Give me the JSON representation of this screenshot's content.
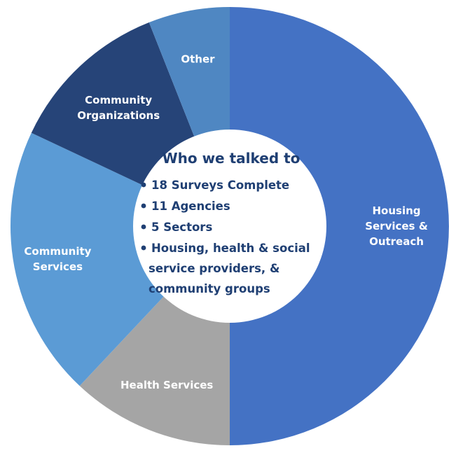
{
  "chart_data": {
    "type": "pie",
    "donut": true,
    "categories": [
      "Housing Services & Outreach",
      "Health Services",
      "Community Services",
      "Community Organizations",
      "Other"
    ],
    "values": [
      50,
      12,
      20,
      12,
      6
    ],
    "unit": "%",
    "colors": [
      "#4472c4",
      "#a5a5a5",
      "#5b9bd5",
      "#264478",
      "#4f87c2"
    ],
    "slices": [
      {
        "lines": [
          "Housing",
          "Services &",
          "Outreach"
        ],
        "value": 50,
        "color": "#4472c4",
        "text_color": "#ffffff"
      },
      {
        "lines": [
          "Health Services"
        ],
        "value": 12,
        "color": "#a5a5a5",
        "text_color": "#ffffff"
      },
      {
        "lines": [
          "Community",
          "Services"
        ],
        "value": 20,
        "color": "#5b9bd5",
        "text_color": "#ffffff"
      },
      {
        "lines": [
          "Community",
          "Organizations"
        ],
        "value": 12,
        "color": "#264478",
        "text_color": "#ffffff"
      },
      {
        "lines": [
          "Other"
        ],
        "value": 6,
        "color": "#4f87c2",
        "text_color": "#ffffff"
      }
    ],
    "start_angle_deg": 0,
    "direction": "clockwise"
  },
  "center": {
    "title": "Who we talked to",
    "bullets": [
      {
        "lines": [
          "18 Surveys Complete"
        ]
      },
      {
        "lines": [
          "11 Agencies"
        ]
      },
      {
        "lines": [
          "5 Sectors"
        ]
      },
      {
        "lines": [
          "Housing, health & social",
          "service providers, &",
          "community groups"
        ]
      }
    ],
    "text_color": "#1f3f73",
    "background": "#ffffff"
  }
}
